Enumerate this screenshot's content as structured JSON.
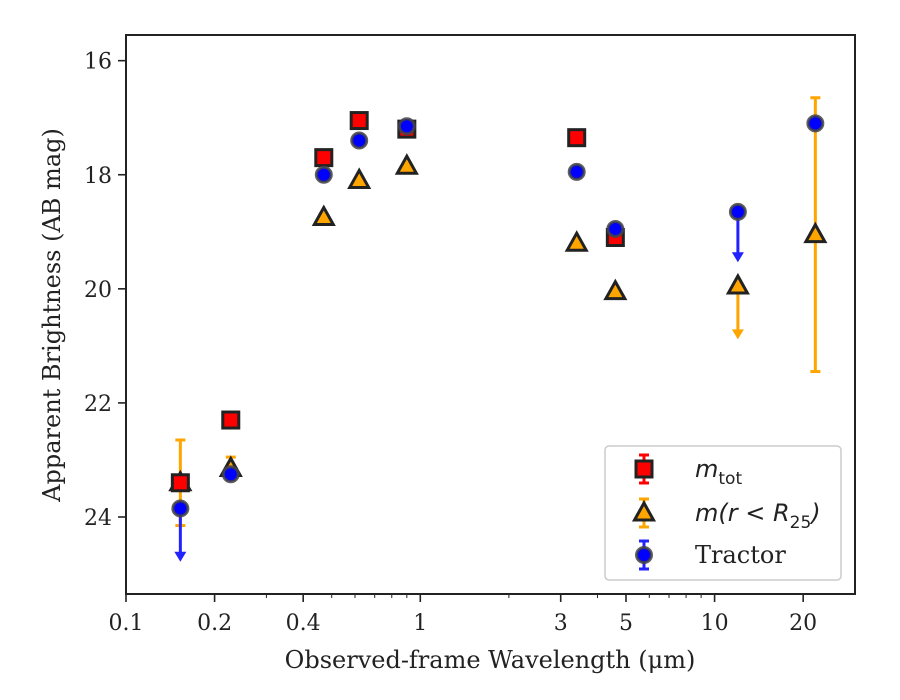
{
  "chart_data": {
    "type": "scatter",
    "xlabel": "Observed-frame Wavelength (μm)",
    "ylabel": "Apparent Brightness (AB mag)",
    "xscale": "log",
    "xlim": [
      0.1,
      30
    ],
    "ylim": [
      25.35,
      15.55
    ],
    "y_inverted": true,
    "x_ticks": [
      0.1,
      0.2,
      0.4,
      1,
      3,
      5,
      10,
      20
    ],
    "x_tick_labels": [
      "0.1",
      "0.2",
      "0.4",
      "1",
      "3",
      "5",
      "10",
      "20"
    ],
    "y_ticks": [
      16,
      18,
      20,
      22,
      24
    ],
    "y_tick_labels": [
      "16",
      "18",
      "20",
      "22",
      "24"
    ],
    "legend": {
      "placement": "lower-right",
      "entries": [
        {
          "base": "m",
          "sub": "tot",
          "rest": ""
        },
        {
          "base": "m(r < R",
          "sub": "25",
          "rest": ")"
        },
        {
          "base": "Tractor",
          "sub": "",
          "rest": ""
        }
      ]
    },
    "series": [
      {
        "name": "m_tot",
        "marker": "square",
        "color": "#ff0000",
        "errcolor": "#ff0000",
        "points": [
          {
            "x": 0.153,
            "y": 23.4,
            "err": 0.12
          },
          {
            "x": 0.227,
            "y": 22.3,
            "err": 0.05
          },
          {
            "x": 0.47,
            "y": 17.7,
            "err": 0.05
          },
          {
            "x": 0.62,
            "y": 17.05,
            "err": 0.05
          },
          {
            "x": 0.9,
            "y": 17.2,
            "err": 0.1
          },
          {
            "x": 3.4,
            "y": 17.35,
            "err": 0.05
          },
          {
            "x": 4.6,
            "y": 19.1,
            "err": 0.12
          }
        ]
      },
      {
        "name": "m(r < R_25)",
        "marker": "triangle",
        "color": "#ffa500",
        "errcolor": "#ffa500",
        "points": [
          {
            "x": 0.153,
            "y": 23.4,
            "err": 0.75
          },
          {
            "x": 0.227,
            "y": 23.15,
            "err": 0.2
          },
          {
            "x": 0.47,
            "y": 18.75,
            "err": 0.05
          },
          {
            "x": 0.62,
            "y": 18.1,
            "err": 0.05
          },
          {
            "x": 0.9,
            "y": 17.85,
            "err": 0.05
          },
          {
            "x": 3.4,
            "y": 19.2,
            "err": 0.05
          },
          {
            "x": 4.6,
            "y": 20.05,
            "err": 0.05
          },
          {
            "x": 12.0,
            "y": 19.95,
            "upper_limit": true,
            "arrow_to": 20.85
          },
          {
            "x": 22.0,
            "y": 19.05,
            "err_low": 2.4,
            "err_high": 2.4
          }
        ]
      },
      {
        "name": "Tractor",
        "marker": "circle",
        "color": "#0000ff",
        "errcolor": "#2222ff",
        "points": [
          {
            "x": 0.153,
            "y": 23.85,
            "upper_limit": true,
            "arrow_to": 24.75
          },
          {
            "x": 0.227,
            "y": 23.25,
            "err": 0.05
          },
          {
            "x": 0.47,
            "y": 18.0,
            "err": 0.05
          },
          {
            "x": 0.62,
            "y": 17.4,
            "err": 0.05
          },
          {
            "x": 0.9,
            "y": 17.15,
            "err": 0.05
          },
          {
            "x": 3.4,
            "y": 17.95,
            "err": 0.05
          },
          {
            "x": 4.6,
            "y": 18.95,
            "err": 0.05
          },
          {
            "x": 12.0,
            "y": 18.65,
            "upper_limit": true,
            "arrow_to": 19.5
          },
          {
            "x": 22.0,
            "y": 17.1,
            "err": 0.05
          }
        ]
      }
    ]
  }
}
